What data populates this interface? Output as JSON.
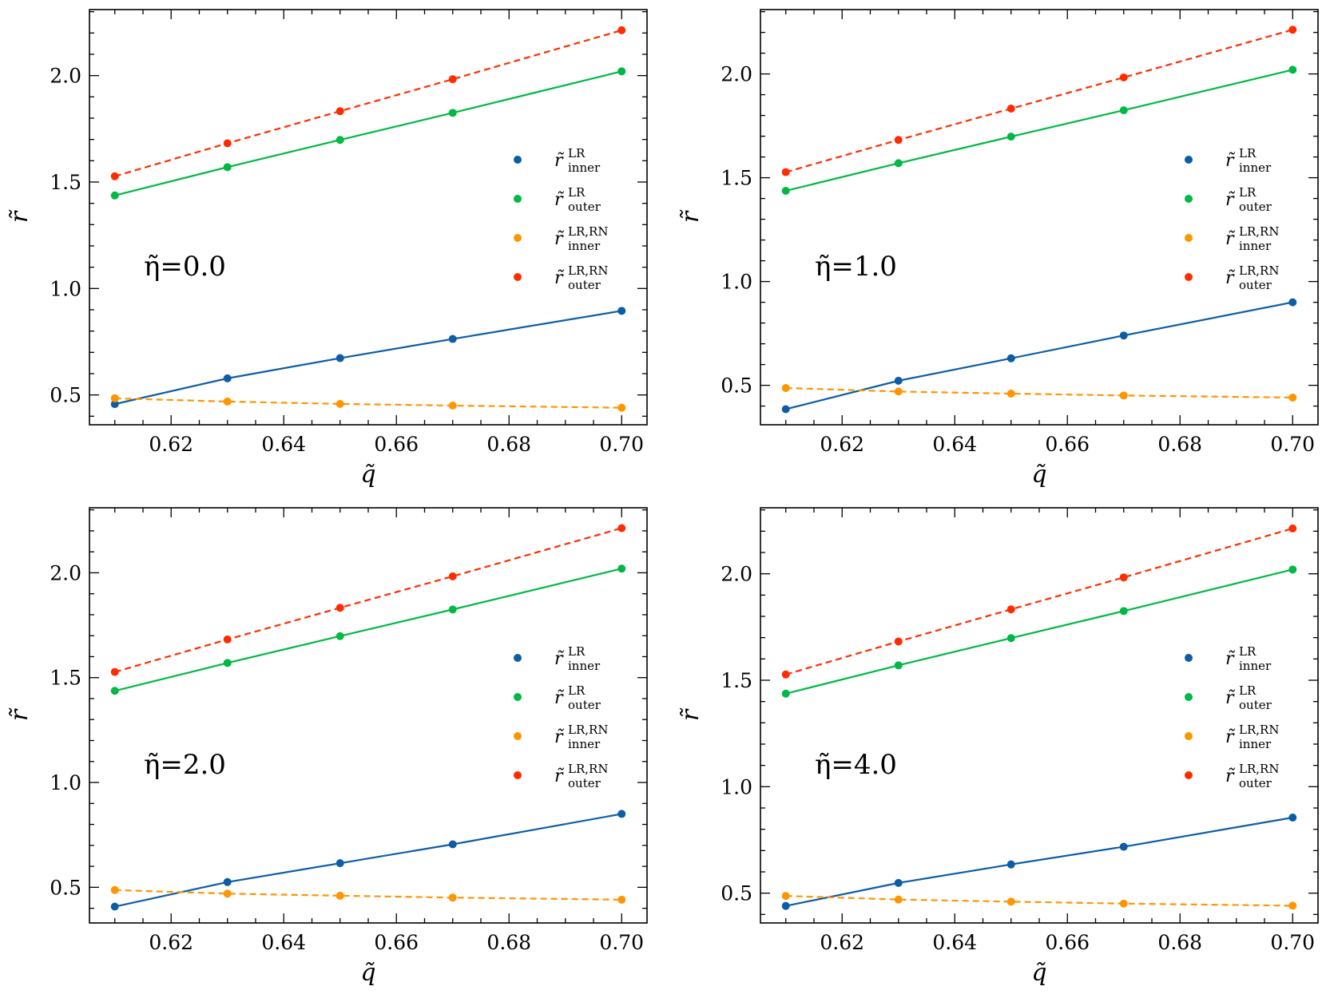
{
  "figure": {
    "xlabel": "q̃",
    "ylabel": "r̃",
    "xticks": [
      "0.62",
      "0.64",
      "0.66",
      "0.68",
      "0.70"
    ],
    "yticks": [
      "0.5",
      "1.0",
      "1.5",
      "2.0"
    ],
    "legend": [
      {
        "base": "r̃",
        "sup": "LR",
        "sub": "inner",
        "color": "#0c5da5"
      },
      {
        "base": "r̃",
        "sup": "LR",
        "sub": "outer",
        "color": "#00b945"
      },
      {
        "base": "r̃",
        "sup": "LR,RN",
        "sub": "inner",
        "color": "#ff9500"
      },
      {
        "base": "r̃",
        "sup": "LR,RN",
        "sub": "outer",
        "color": "#ff2c00"
      }
    ]
  },
  "chart_data": [
    {
      "type": "line",
      "annotation": "η̃=0.0",
      "x": [
        0.61,
        0.63,
        0.65,
        0.67,
        0.7
      ],
      "xlim": [
        0.6055,
        0.7045
      ],
      "ylim": [
        0.36,
        2.31
      ],
      "series": [
        {
          "name": "r̃ LR inner",
          "color": "#0c5da5",
          "dash": false,
          "values": [
            0.457,
            0.578,
            0.673,
            0.763,
            0.895
          ]
        },
        {
          "name": "r̃ LR outer",
          "color": "#00b945",
          "dash": false,
          "values": [
            1.437,
            1.57,
            1.698,
            1.825,
            2.02
          ]
        },
        {
          "name": "r̃ LR,RN inner",
          "color": "#ff9500",
          "dash": true,
          "values": [
            0.484,
            0.469,
            0.458,
            0.45,
            0.44
          ]
        },
        {
          "name": "r̃ LR,RN outer",
          "color": "#ff2c00",
          "dash": true,
          "values": [
            1.527,
            1.682,
            1.833,
            1.983,
            2.213
          ]
        }
      ]
    },
    {
      "type": "line",
      "annotation": "η̃=1.0",
      "x": [
        0.61,
        0.63,
        0.65,
        0.67,
        0.7
      ],
      "xlim": [
        0.6055,
        0.7045
      ],
      "ylim": [
        0.31,
        2.31
      ],
      "series": [
        {
          "name": "r̃ LR inner",
          "color": "#0c5da5",
          "dash": false,
          "values": [
            0.385,
            0.522,
            0.63,
            0.74,
            0.9
          ]
        },
        {
          "name": "r̃ LR outer",
          "color": "#00b945",
          "dash": false,
          "values": [
            1.437,
            1.57,
            1.698,
            1.825,
            2.02
          ]
        },
        {
          "name": "r̃ LR,RN inner",
          "color": "#ff9500",
          "dash": true,
          "values": [
            0.487,
            0.47,
            0.46,
            0.451,
            0.441
          ]
        },
        {
          "name": "r̃ LR,RN outer",
          "color": "#ff2c00",
          "dash": true,
          "values": [
            1.527,
            1.682,
            1.833,
            1.983,
            2.213
          ]
        }
      ]
    },
    {
      "type": "line",
      "annotation": "η̃=2.0",
      "x": [
        0.61,
        0.63,
        0.65,
        0.67,
        0.7
      ],
      "xlim": [
        0.6055,
        0.7045
      ],
      "ylim": [
        0.33,
        2.31
      ],
      "series": [
        {
          "name": "r̃ LR inner",
          "color": "#0c5da5",
          "dash": false,
          "values": [
            0.408,
            0.525,
            0.615,
            0.705,
            0.85
          ]
        },
        {
          "name": "r̃ LR outer",
          "color": "#00b945",
          "dash": false,
          "values": [
            1.437,
            1.57,
            1.698,
            1.825,
            2.02
          ]
        },
        {
          "name": "r̃ LR,RN inner",
          "color": "#ff9500",
          "dash": true,
          "values": [
            0.487,
            0.47,
            0.46,
            0.451,
            0.441
          ]
        },
        {
          "name": "r̃ LR,RN outer",
          "color": "#ff2c00",
          "dash": true,
          "values": [
            1.527,
            1.682,
            1.833,
            1.983,
            2.213
          ]
        }
      ]
    },
    {
      "type": "line",
      "annotation": "η̃=4.0",
      "x": [
        0.61,
        0.63,
        0.65,
        0.67,
        0.7
      ],
      "xlim": [
        0.6055,
        0.7045
      ],
      "ylim": [
        0.36,
        2.31
      ],
      "series": [
        {
          "name": "r̃ LR inner",
          "color": "#0c5da5",
          "dash": false,
          "values": [
            0.44,
            0.548,
            0.635,
            0.718,
            0.855
          ]
        },
        {
          "name": "r̃ LR outer",
          "color": "#00b945",
          "dash": false,
          "values": [
            1.437,
            1.57,
            1.698,
            1.825,
            2.02
          ]
        },
        {
          "name": "r̃ LR,RN inner",
          "color": "#ff9500",
          "dash": true,
          "values": [
            0.487,
            0.47,
            0.46,
            0.451,
            0.441
          ]
        },
        {
          "name": "r̃ LR,RN outer",
          "color": "#ff2c00",
          "dash": true,
          "values": [
            1.527,
            1.682,
            1.833,
            1.983,
            2.213
          ]
        }
      ]
    }
  ]
}
